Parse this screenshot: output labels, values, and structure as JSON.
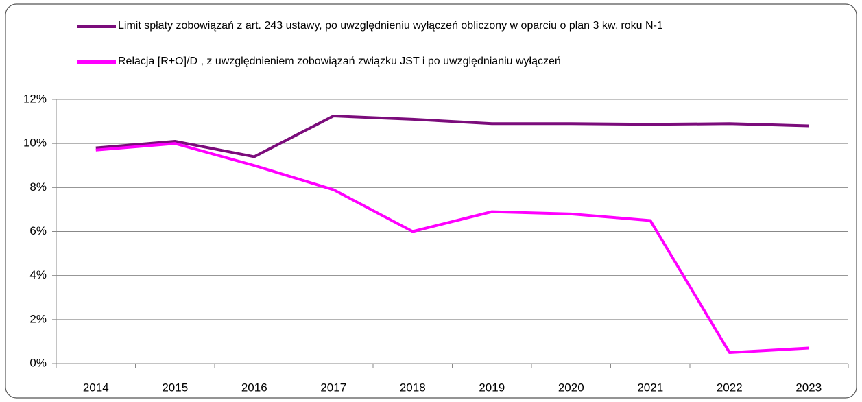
{
  "chart_data": {
    "type": "line",
    "categories": [
      "2014",
      "2015",
      "2016",
      "2017",
      "2018",
      "2019",
      "2020",
      "2021",
      "2022",
      "2023"
    ],
    "series": [
      {
        "name": "Limit spłaty zobowiązań z art. 243 ustawy, po uwzględnieniu wyłączeń obliczony w oparciu o plan 3 kw. roku N-1",
        "color": "#7b0c7b",
        "values": [
          9.8,
          10.1,
          9.4,
          11.25,
          11.1,
          10.9,
          10.9,
          10.87,
          10.9,
          10.8
        ]
      },
      {
        "name": "Relacja [R+O]/D , z uwzględnieniem zobowiązań związku JST i po uwzględnianiu wyłączeń",
        "color": "#ff00ff",
        "values": [
          9.7,
          10.0,
          9.0,
          7.9,
          6.0,
          6.9,
          6.8,
          6.5,
          0.5,
          0.7
        ]
      }
    ],
    "ylim": [
      0,
      12
    ],
    "yticks": [
      {
        "value": 0,
        "label": "0%"
      },
      {
        "value": 2,
        "label": "2%"
      },
      {
        "value": 4,
        "label": "4%"
      },
      {
        "value": 6,
        "label": "6%"
      },
      {
        "value": 8,
        "label": "8%"
      },
      {
        "value": 10,
        "label": "10%"
      },
      {
        "value": 12,
        "label": "12%"
      }
    ],
    "grid": true,
    "legend": "top"
  }
}
